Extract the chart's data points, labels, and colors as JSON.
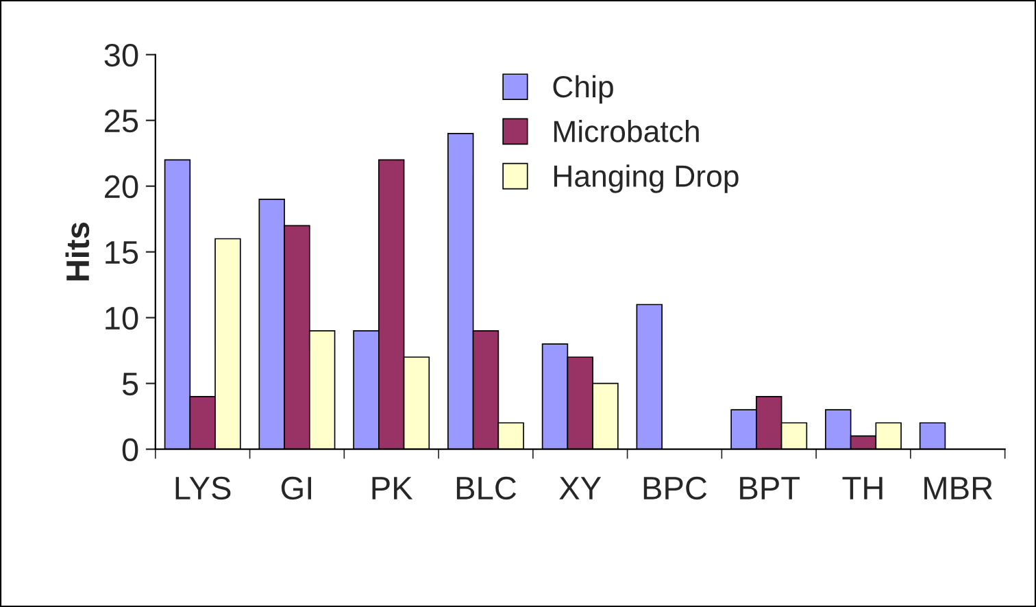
{
  "chart_data": {
    "type": "bar",
    "ylabel": "Hits",
    "categories": [
      "LYS",
      "GI",
      "PK",
      "BLC",
      "XY",
      "BPC",
      "BPT",
      "TH",
      "MBR"
    ],
    "series": [
      {
        "name": "Chip",
        "color": "#9999ff",
        "values": [
          22,
          19,
          9,
          24,
          8,
          11,
          3,
          3,
          2
        ]
      },
      {
        "name": "Microbatch",
        "color": "#993366",
        "values": [
          4,
          17,
          22,
          9,
          7,
          null,
          4,
          1,
          null
        ]
      },
      {
        "name": "Hanging Drop",
        "color": "#ffffcc",
        "values": [
          16,
          9,
          7,
          2,
          5,
          null,
          2,
          2,
          null
        ]
      }
    ],
    "ylim": [
      0,
      30
    ],
    "yticks": [
      0,
      5,
      10,
      15,
      20,
      25,
      30
    ],
    "grid": false,
    "legend": "top right"
  }
}
